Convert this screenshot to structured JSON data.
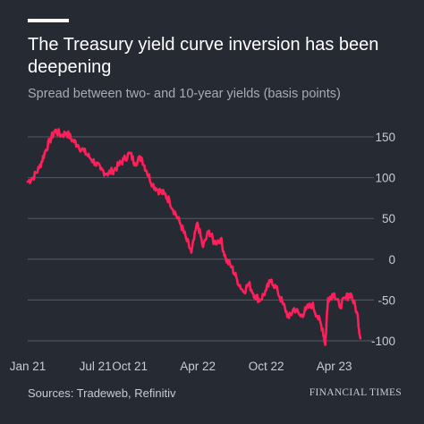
{
  "header": {
    "title": "The Treasury yield curve inversion has been deepening",
    "subtitle": "Spread between two- and 10-year yields (basis points)"
  },
  "footer": {
    "source": "Sources: Tradeweb, Refinitiv",
    "brand": "FINANCIAL TIMES"
  },
  "colors": {
    "background": "#262a33",
    "line": "#ff1f5a",
    "grid": "#555a66",
    "text": "#c9cbd0"
  },
  "chart_data": {
    "type": "line",
    "title": "The Treasury yield curve inversion has been deepening",
    "subtitle": "Spread between two- and 10-year yields (basis points)",
    "ylim": [
      -100,
      160
    ],
    "yticks": [
      150,
      100,
      50,
      0,
      -50,
      -100
    ],
    "ytick_labels": [
      "150",
      "100",
      "50",
      "0",
      "-50",
      "-100"
    ],
    "y_axis_side": "right",
    "xlim": [
      "2021-01-01",
      "2023-06-15"
    ],
    "xticks": [
      {
        "date": "2021-01-01",
        "label": "Jan 21"
      },
      {
        "date": "2021-07-01",
        "label": "Jul 21"
      },
      {
        "date": "2021-10-01",
        "label": "Oct 21"
      },
      {
        "date": "2022-04-01",
        "label": "Apr 22"
      },
      {
        "date": "2022-10-01",
        "label": "Oct 22"
      },
      {
        "date": "2023-04-01",
        "label": "Apr 23"
      }
    ],
    "grid": "horizontal",
    "series": [
      {
        "x": [
          "2021-01-01",
          "2021-01-15",
          "2021-02-01",
          "2021-02-15",
          "2021-03-01",
          "2021-03-15",
          "2021-04-01",
          "2021-04-15",
          "2021-05-01",
          "2021-05-15",
          "2021-06-01",
          "2021-06-15",
          "2021-07-01",
          "2021-07-15",
          "2021-08-01",
          "2021-08-15",
          "2021-09-01",
          "2021-09-15",
          "2021-10-01",
          "2021-10-15",
          "2021-11-01",
          "2021-11-15",
          "2021-12-01",
          "2021-12-15",
          "2022-01-01",
          "2022-01-15",
          "2022-02-01",
          "2022-02-15",
          "2022-03-01",
          "2022-03-15",
          "2022-03-31",
          "2022-04-15",
          "2022-05-01",
          "2022-05-15",
          "2022-06-01",
          "2022-06-15",
          "2022-07-01",
          "2022-07-15",
          "2022-08-01",
          "2022-08-15",
          "2022-09-01",
          "2022-09-15",
          "2022-10-01",
          "2022-10-15",
          "2022-11-01",
          "2022-11-15",
          "2022-12-01",
          "2022-12-15",
          "2023-01-01",
          "2023-01-15",
          "2023-02-01",
          "2023-02-15",
          "2023-03-01",
          "2023-03-08",
          "2023-03-15",
          "2023-04-01",
          "2023-04-15",
          "2023-05-01",
          "2023-05-15",
          "2023-06-01",
          "2023-06-10"
        ],
        "values": [
          95,
          100,
          112,
          130,
          145,
          158,
          152,
          155,
          146,
          140,
          132,
          125,
          118,
          110,
          105,
          108,
          115,
          122,
          130,
          118,
          125,
          108,
          92,
          85,
          80,
          72,
          55,
          42,
          25,
          8,
          45,
          15,
          35,
          20,
          25,
          0,
          -10,
          -25,
          -40,
          -30,
          -45,
          -50,
          -38,
          -25,
          -40,
          -55,
          -72,
          -60,
          -70,
          -62,
          -55,
          -70,
          -85,
          -105,
          -48,
          -42,
          -58,
          -48,
          -42,
          -65,
          -97
        ]
      }
    ]
  }
}
